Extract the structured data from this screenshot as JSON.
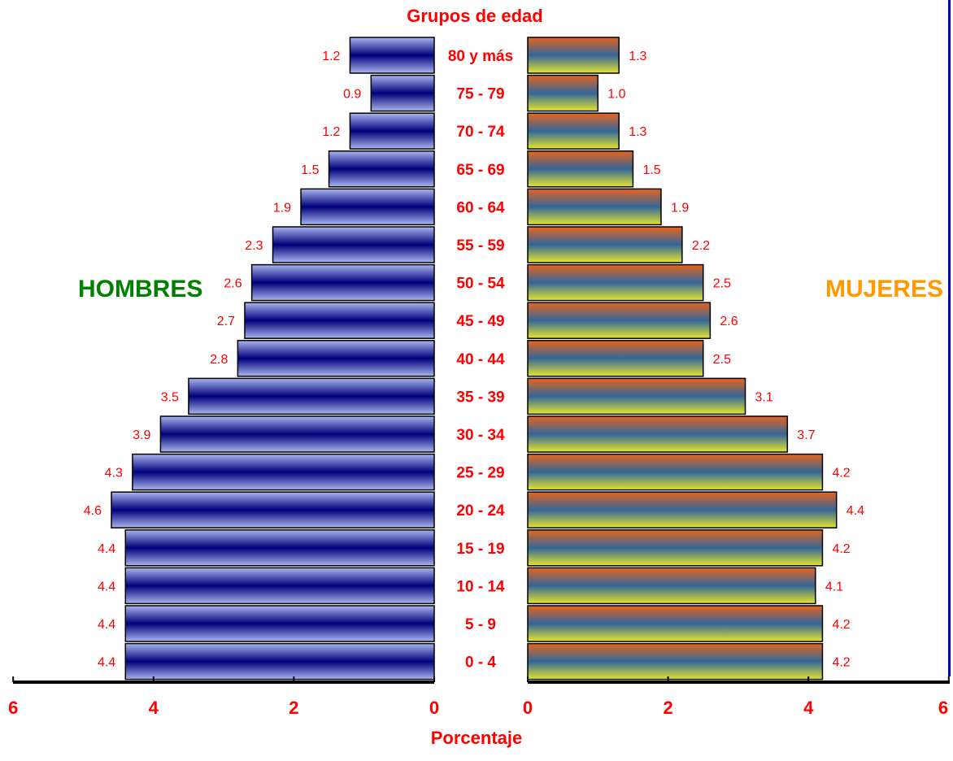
{
  "chart_data": {
    "type": "bar",
    "title": "Grupos de edad",
    "xlabel": "Porcentaje",
    "categories": [
      "0 - 4",
      "5 - 9",
      "10 - 14",
      "15 - 19",
      "20 - 24",
      "25 - 29",
      "30 - 34",
      "35 - 39",
      "40 - 44",
      "45 - 49",
      "50 - 54",
      "55 - 59",
      "60 - 64",
      "65 - 69",
      "70 - 74",
      "75 - 79",
      "80 y más"
    ],
    "series": [
      {
        "name": "HOMBRES",
        "values": [
          4.4,
          4.4,
          4.4,
          4.4,
          4.6,
          4.3,
          3.9,
          3.5,
          2.8,
          2.7,
          2.6,
          2.3,
          1.9,
          1.5,
          1.2,
          0.9,
          1.2
        ]
      },
      {
        "name": "MUJERES",
        "values": [
          4.2,
          4.2,
          4.1,
          4.2,
          4.4,
          4.2,
          3.7,
          3.1,
          2.5,
          2.6,
          2.5,
          2.2,
          1.9,
          1.5,
          1.3,
          1.0,
          1.3
        ]
      }
    ],
    "value_labels": {
      "HOMBRES": [
        "4.4",
        "4.4",
        "4.4",
        "4.4",
        "4.6",
        "4.3",
        "3.9",
        "3.5",
        "2.8",
        "2.7",
        "2.6",
        "2.3",
        "1.9",
        "1.5",
        "1.2",
        "0.9",
        "1.2"
      ],
      "MUJERES": [
        "4.2",
        "4.2",
        "4.1",
        "4.2",
        "4.4",
        "4.2",
        "3.7",
        "3.1",
        "2.5",
        "2.6",
        "2.5",
        "2.2",
        "1.9",
        "1.5",
        "1.3",
        "1.0",
        "1.3"
      ]
    },
    "xlim": [
      0,
      6
    ],
    "ticks_left": [
      "6",
      "4",
      "2",
      "0"
    ],
    "ticks_right": [
      "0",
      "2",
      "4",
      "6"
    ],
    "grid": false,
    "colors": {
      "labels": "#ff0000",
      "hombres_label": "#008000",
      "mujeres_label": "#ff9900",
      "hombres_fill": [
        "#8899dd",
        "#000080"
      ],
      "mujeres_fill": [
        "#e86820",
        "#336699",
        "#dddd33"
      ],
      "right_border": "#0000cc"
    }
  }
}
